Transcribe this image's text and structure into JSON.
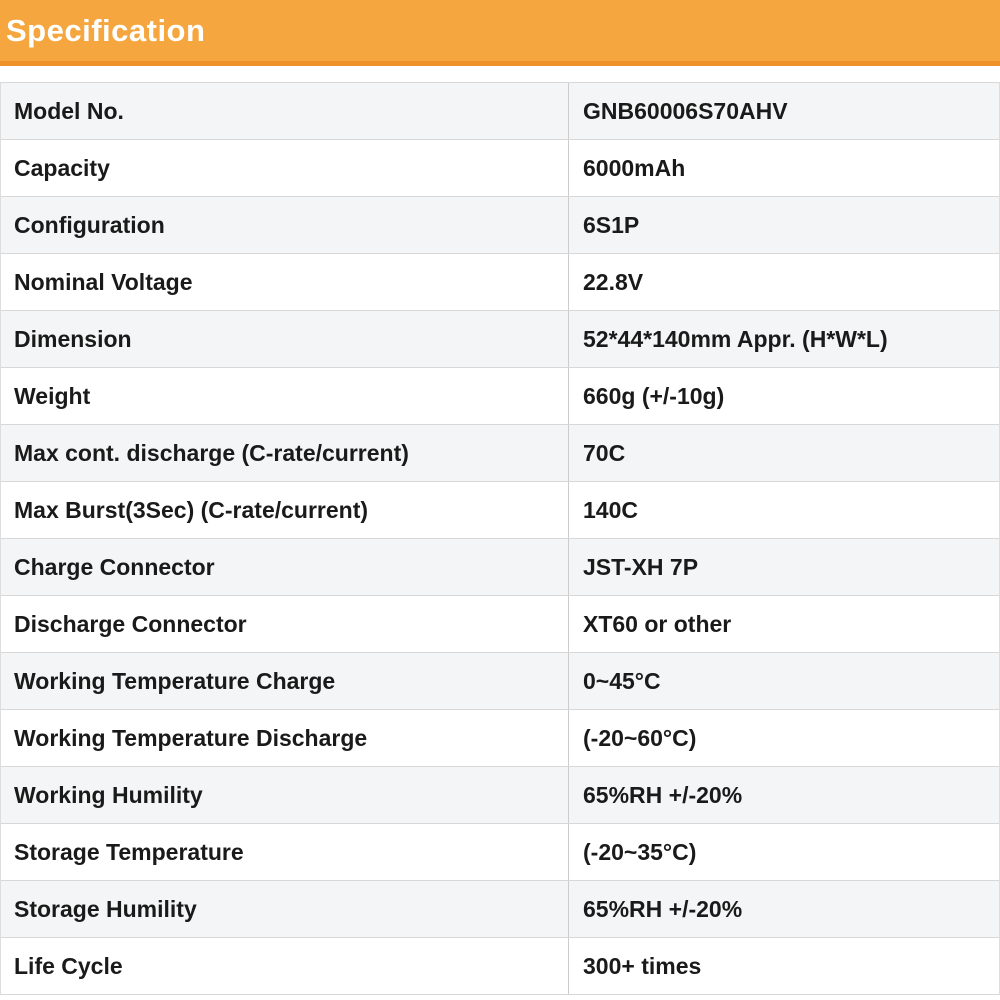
{
  "header": {
    "title": "Specification",
    "background_color": "#f6a63e",
    "underline_color": "#ee9227",
    "text_color": "#ffffff"
  },
  "table": {
    "stripe_color": "#f4f5f6",
    "row_border_color": "#d8d8d8",
    "column_divider_color": "#cccccc",
    "text_color": "#1a1a1a",
    "rows": [
      {
        "label": "Model No.",
        "value": "GNB60006S70AHV"
      },
      {
        "label": "Capacity",
        "value": "6000mAh"
      },
      {
        "label": "Configuration",
        "value": "6S1P"
      },
      {
        "label": "Nominal Voltage",
        "value": "22.8V"
      },
      {
        "label": "Dimension",
        "value": "52*44*140mm Appr. (H*W*L)"
      },
      {
        "label": "Weight",
        "value": "660g (+/-10g)"
      },
      {
        "label": "Max cont. discharge (C-rate/current)",
        "value": "70C"
      },
      {
        "label": "Max Burst(3Sec) (C-rate/current)",
        "value": "140C"
      },
      {
        "label": "Charge Connector",
        "value": "JST-XH 7P"
      },
      {
        "label": "Discharge Connector",
        "value": "XT60 or other"
      },
      {
        "label": "Working Temperature Charge",
        "value": "0~45°C"
      },
      {
        "label": "Working Temperature Discharge",
        "value": "(-20~60°C)"
      },
      {
        "label": "Working Humility",
        "value": "65%RH +/-20%"
      },
      {
        "label": "Storage Temperature",
        "value": "(-20~35°C)"
      },
      {
        "label": "Storage Humility",
        "value": "65%RH +/-20%"
      },
      {
        "label": "Life Cycle",
        "value": "300+ times"
      }
    ]
  }
}
